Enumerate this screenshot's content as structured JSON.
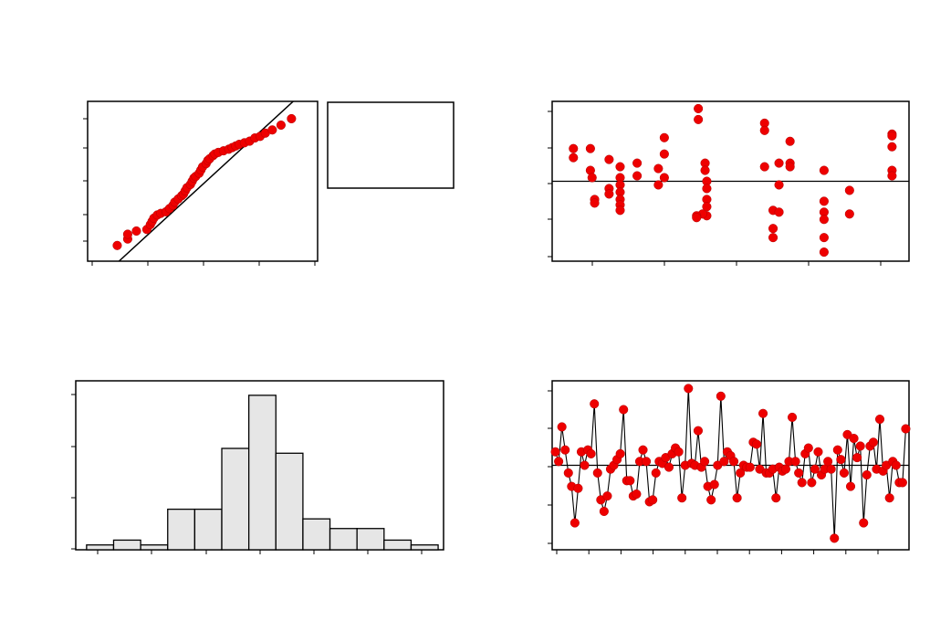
{
  "colors": {
    "point": "#ee0000",
    "line": "#000000",
    "bar_fill": "#e6e6e6",
    "frame": "#000000"
  },
  "chart_data": [
    {
      "type": "scatter",
      "title": "",
      "xlabel": "",
      "ylabel": "",
      "xlim": [
        -3.3,
        3.3
      ],
      "ylim": [
        0.002,
        0.998
      ],
      "grid": false,
      "reference_line": {
        "from": [
          -2.4,
          0.002
        ],
        "to": [
          2.6,
          0.998
        ]
      },
      "values": [
        [
          -2.45,
          0.1
        ],
        [
          -2.15,
          0.14
        ],
        [
          -2.15,
          0.17
        ],
        [
          -1.9,
          0.19
        ],
        [
          -1.6,
          0.2
        ],
        [
          -1.5,
          0.23
        ],
        [
          -1.45,
          0.25
        ],
        [
          -1.4,
          0.27
        ],
        [
          -1.3,
          0.29
        ],
        [
          -1.2,
          0.3
        ],
        [
          -1.05,
          0.31
        ],
        [
          -0.95,
          0.33
        ],
        [
          -0.85,
          0.35
        ],
        [
          -0.8,
          0.37
        ],
        [
          -0.7,
          0.39
        ],
        [
          -0.6,
          0.41
        ],
        [
          -0.55,
          0.42
        ],
        [
          -0.5,
          0.44
        ],
        [
          -0.45,
          0.46
        ],
        [
          -0.35,
          0.48
        ],
        [
          -0.3,
          0.5
        ],
        [
          -0.25,
          0.52
        ],
        [
          -0.2,
          0.53
        ],
        [
          -0.1,
          0.55
        ],
        [
          -0.05,
          0.57
        ],
        [
          0.0,
          0.59
        ],
        [
          0.1,
          0.61
        ],
        [
          0.15,
          0.63
        ],
        [
          0.2,
          0.64
        ],
        [
          0.3,
          0.66
        ],
        [
          0.35,
          0.67
        ],
        [
          0.45,
          0.68
        ],
        [
          0.6,
          0.69
        ],
        [
          0.75,
          0.7
        ],
        [
          0.85,
          0.71
        ],
        [
          0.95,
          0.72
        ],
        [
          1.05,
          0.73
        ],
        [
          1.2,
          0.74
        ],
        [
          1.35,
          0.75
        ],
        [
          1.5,
          0.77
        ],
        [
          1.65,
          0.78
        ],
        [
          1.8,
          0.8
        ],
        [
          2.0,
          0.82
        ],
        [
          2.25,
          0.85
        ],
        [
          2.55,
          0.89
        ]
      ]
    },
    {
      "type": "legend_box",
      "text": ""
    },
    {
      "type": "scatter",
      "title": "",
      "xlabel": "",
      "ylabel": "",
      "xlim": [
        -21,
        21
      ],
      "ylim": [
        -2.2,
        2.2
      ],
      "grid": false,
      "reference_line": {
        "y": 0
      },
      "values": [
        [
          -18.5,
          0.9
        ],
        [
          -18.5,
          0.65
        ],
        [
          -16.5,
          0.9
        ],
        [
          -16.5,
          0.3
        ],
        [
          -16.3,
          0.1
        ],
        [
          -16.0,
          -0.5
        ],
        [
          -16.0,
          -0.6
        ],
        [
          -14.3,
          0.6
        ],
        [
          -14.3,
          -0.2
        ],
        [
          -14.3,
          -0.35
        ],
        [
          -13.0,
          0.4
        ],
        [
          -13.0,
          0.1
        ],
        [
          -13.0,
          -0.1
        ],
        [
          -13.0,
          -0.3
        ],
        [
          -13.0,
          -0.5
        ],
        [
          -13.0,
          -0.65
        ],
        [
          -13.0,
          -0.8
        ],
        [
          -11.0,
          0.5
        ],
        [
          -11.0,
          0.15
        ],
        [
          -8.5,
          0.35
        ],
        [
          -8.5,
          -0.1
        ],
        [
          -7.8,
          1.2
        ],
        [
          -7.8,
          0.75
        ],
        [
          -7.8,
          0.1
        ],
        [
          -3.8,
          2.0
        ],
        [
          -3.8,
          1.7
        ],
        [
          -3.0,
          0.5
        ],
        [
          -3.0,
          0.3
        ],
        [
          -2.8,
          0.0
        ],
        [
          -2.8,
          -0.2
        ],
        [
          -2.8,
          -0.5
        ],
        [
          -2.8,
          -0.7
        ],
        [
          -2.8,
          -0.95
        ],
        [
          -3.3,
          -0.9
        ],
        [
          -4.0,
          -0.95
        ],
        [
          -4.0,
          -1.0
        ],
        [
          4.0,
          1.6
        ],
        [
          4.0,
          1.4
        ],
        [
          4.0,
          0.4
        ],
        [
          5.0,
          -0.8
        ],
        [
          5.0,
          -1.3
        ],
        [
          5.0,
          -1.55
        ],
        [
          5.7,
          0.5
        ],
        [
          5.7,
          -0.1
        ],
        [
          5.7,
          -0.85
        ],
        [
          7.0,
          1.1
        ],
        [
          7.0,
          0.5
        ],
        [
          7.0,
          0.4
        ],
        [
          11.0,
          0.3
        ],
        [
          11.0,
          -0.55
        ],
        [
          11.0,
          -0.85
        ],
        [
          11.0,
          -1.05
        ],
        [
          11.0,
          -1.55
        ],
        [
          11.0,
          -1.95
        ],
        [
          14.0,
          -0.25
        ],
        [
          14.0,
          -0.9
        ],
        [
          19.0,
          1.3
        ],
        [
          19.0,
          1.25
        ],
        [
          19.0,
          0.95
        ],
        [
          19.0,
          0.3
        ],
        [
          19.0,
          0.15
        ]
      ]
    },
    {
      "type": "bar",
      "title": "",
      "xlabel": "",
      "ylabel": "",
      "xlim": [
        -3.4,
        3.4
      ],
      "ylim": [
        0,
        17.5
      ],
      "grid": false,
      "bin_edges": [
        -3.2,
        -2.7,
        -2.2,
        -1.7,
        -1.2,
        -0.7,
        -0.2,
        0.3,
        0.8,
        1.3,
        1.8,
        2.3,
        2.8,
        3.3
      ],
      "values": [
        0.5,
        1.0,
        0.5,
        4.2,
        4.2,
        10.5,
        16.0,
        10.0,
        3.2,
        2.2,
        2.2,
        1.0,
        0.5
      ]
    },
    {
      "type": "line",
      "title": "",
      "xlabel": "",
      "ylabel": "",
      "xlim": [
        0,
        110
      ],
      "ylim": [
        -2.2,
        2.2
      ],
      "grid": false,
      "reference_line": {
        "y": 0
      },
      "markers": true,
      "values": [
        0.35,
        0.1,
        1.0,
        0.4,
        -0.2,
        -0.55,
        -1.5,
        -0.6,
        0.35,
        0.0,
        0.4,
        0.3,
        1.6,
        -0.2,
        -0.9,
        -1.2,
        -0.8,
        -0.1,
        0.0,
        0.15,
        0.3,
        1.45,
        -0.4,
        -0.4,
        -0.8,
        -0.75,
        0.1,
        0.4,
        0.1,
        -0.95,
        -0.9,
        -0.2,
        0.1,
        0.05,
        0.2,
        -0.05,
        0.3,
        0.45,
        0.35,
        -0.85,
        0.0,
        2.0,
        0.05,
        0.0,
        0.9,
        -0.05,
        0.1,
        -0.55,
        -0.9,
        -0.5,
        0.0,
        1.8,
        0.1,
        0.35,
        0.25,
        0.1,
        -0.85,
        -0.2,
        0.0,
        -0.05,
        -0.05,
        0.6,
        0.55,
        -0.1,
        1.35,
        -0.2,
        -0.2,
        -0.1,
        -0.85,
        -0.05,
        -0.15,
        -0.1,
        0.1,
        1.25,
        0.1,
        -0.2,
        -0.45,
        0.3,
        0.45,
        -0.45,
        -0.1,
        0.35,
        -0.25,
        -0.1,
        0.1,
        -0.1,
        -1.9,
        0.4,
        0.15,
        -0.2,
        0.8,
        -0.55,
        0.7,
        0.2,
        0.5,
        -1.5,
        -0.25,
        0.5,
        0.6,
        -0.1,
        1.2,
        -0.15,
        0.0,
        -0.85,
        0.1,
        0.0,
        -0.45,
        -0.45,
        0.95
      ]
    }
  ]
}
